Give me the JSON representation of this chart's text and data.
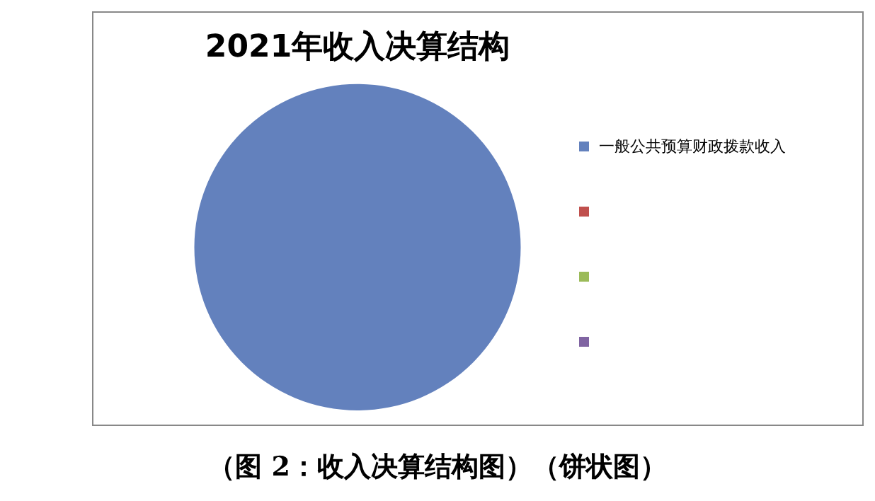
{
  "chart_data": {
    "type": "pie",
    "title": "2021年收入决算结构",
    "categories": [
      "一般公共预算财政拨款收入",
      null,
      null,
      null
    ],
    "values": [
      100,
      0,
      0,
      0
    ],
    "colors": [
      "#6381bd",
      "#c0504d",
      "#9bbb59",
      "#8064a2"
    ],
    "legend": "right",
    "annotations": [
      "（图 2：收入决算结构图）（饼状图）"
    ]
  }
}
